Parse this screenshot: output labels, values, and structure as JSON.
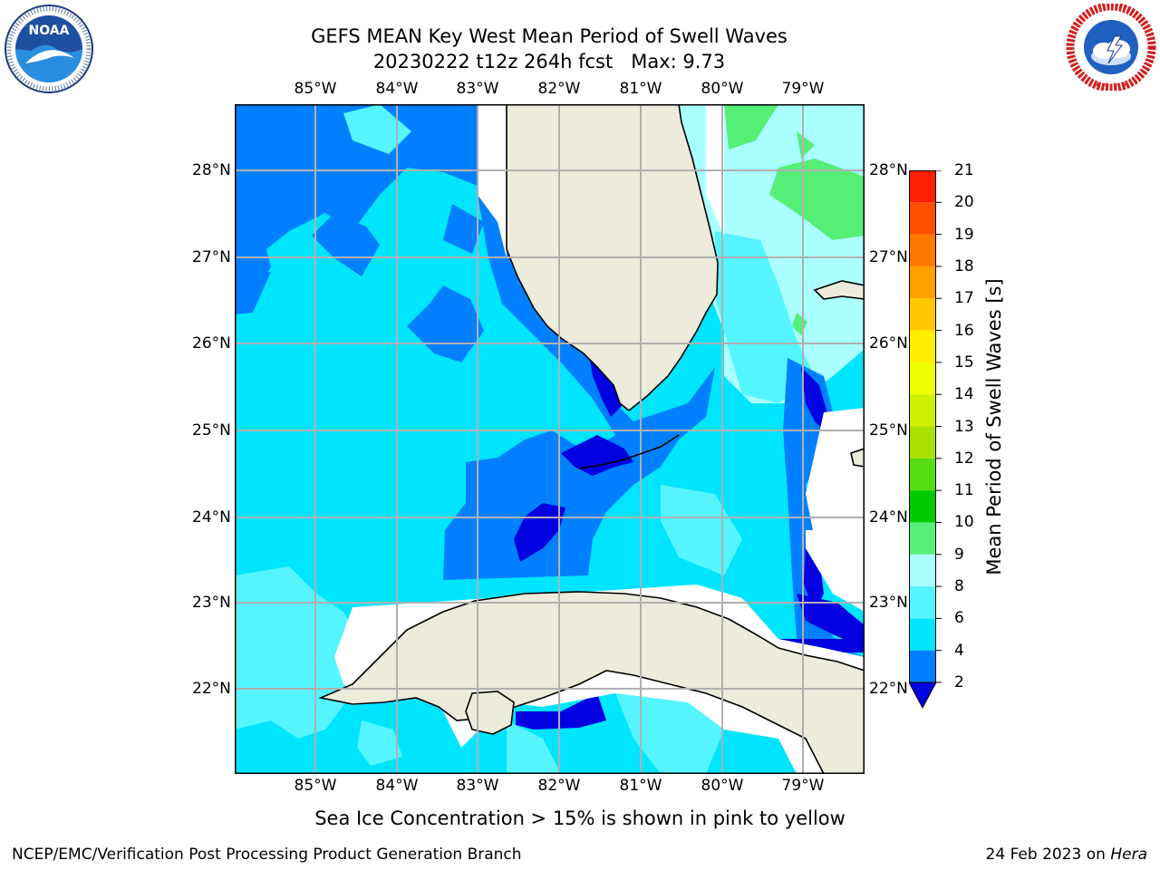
{
  "header": {
    "title_line1": "GEFS MEAN Key West Mean Period of Swell Waves",
    "title_line2": "20230222 t12z 264h fcst   Max: 9.73"
  },
  "logos": {
    "left": {
      "name": "NOAA",
      "ring_text": "NATIONAL OCEANIC AND ATMOSPHERIC ADMINISTRATION · U.S. DEPARTMENT OF COMMERCE"
    },
    "right": {
      "name": "NATIONAL WEATHER SERVICE"
    }
  },
  "map": {
    "longitude_labels": [
      "85°W",
      "84°W",
      "83°W",
      "82°W",
      "81°W",
      "80°W",
      "79°W"
    ],
    "latitude_labels": [
      "28°N",
      "27°N",
      "26°N",
      "25°N",
      "24°N",
      "23°N",
      "22°N"
    ],
    "colors": {
      "land": "#ecebdc",
      "grid": "#b0b0b0",
      "coast": "#000000"
    }
  },
  "colorbar": {
    "label": "Mean Period of Swell Waves [s]",
    "ticks": [
      "2",
      "4",
      "6",
      "8",
      "9",
      "10",
      "11",
      "12",
      "13",
      "14",
      "15",
      "16",
      "17",
      "18",
      "19",
      "20",
      "21"
    ],
    "bands": [
      {
        "from": 2,
        "to": 4,
        "color": "#0080ff"
      },
      {
        "from": 4,
        "to": 6,
        "color": "#00e5ff"
      },
      {
        "from": 6,
        "to": 8,
        "color": "#55f5ff"
      },
      {
        "from": 8,
        "to": 9,
        "color": "#aaffff"
      },
      {
        "from": 9,
        "to": 10,
        "color": "#55ee77"
      },
      {
        "from": 10,
        "to": 11,
        "color": "#00cc00"
      },
      {
        "from": 11,
        "to": 12,
        "color": "#55dd11"
      },
      {
        "from": 12,
        "to": 13,
        "color": "#aae000"
      },
      {
        "from": 13,
        "to": 14,
        "color": "#ccf000"
      },
      {
        "from": 14,
        "to": 15,
        "color": "#eeff00"
      },
      {
        "from": 15,
        "to": 16,
        "color": "#ffee00"
      },
      {
        "from": 16,
        "to": 17,
        "color": "#ffc800"
      },
      {
        "from": 17,
        "to": 18,
        "color": "#ffa000"
      },
      {
        "from": 18,
        "to": 19,
        "color": "#ff7800"
      },
      {
        "from": 19,
        "to": 20,
        "color": "#ff5000"
      },
      {
        "from": 20,
        "to": 21,
        "color": "#ff2000"
      }
    ],
    "under_color": "#0000e0",
    "top_color": "#ff0000"
  },
  "field_colors": {
    "dark_blue": "#0000e0",
    "blue": "#0080ff",
    "cyan": "#00e5ff",
    "light_cyan": "#55f5ff",
    "pale_cyan": "#aaffff",
    "green": "#55ee77"
  },
  "footer": {
    "note": "Sea Ice Concentration > 15% is shown in pink to yellow",
    "left": "NCEP/EMC/Verification Post Processing Product Generation Branch",
    "right_prefix": "24 Feb 2023 on ",
    "right_host": "Hera"
  }
}
